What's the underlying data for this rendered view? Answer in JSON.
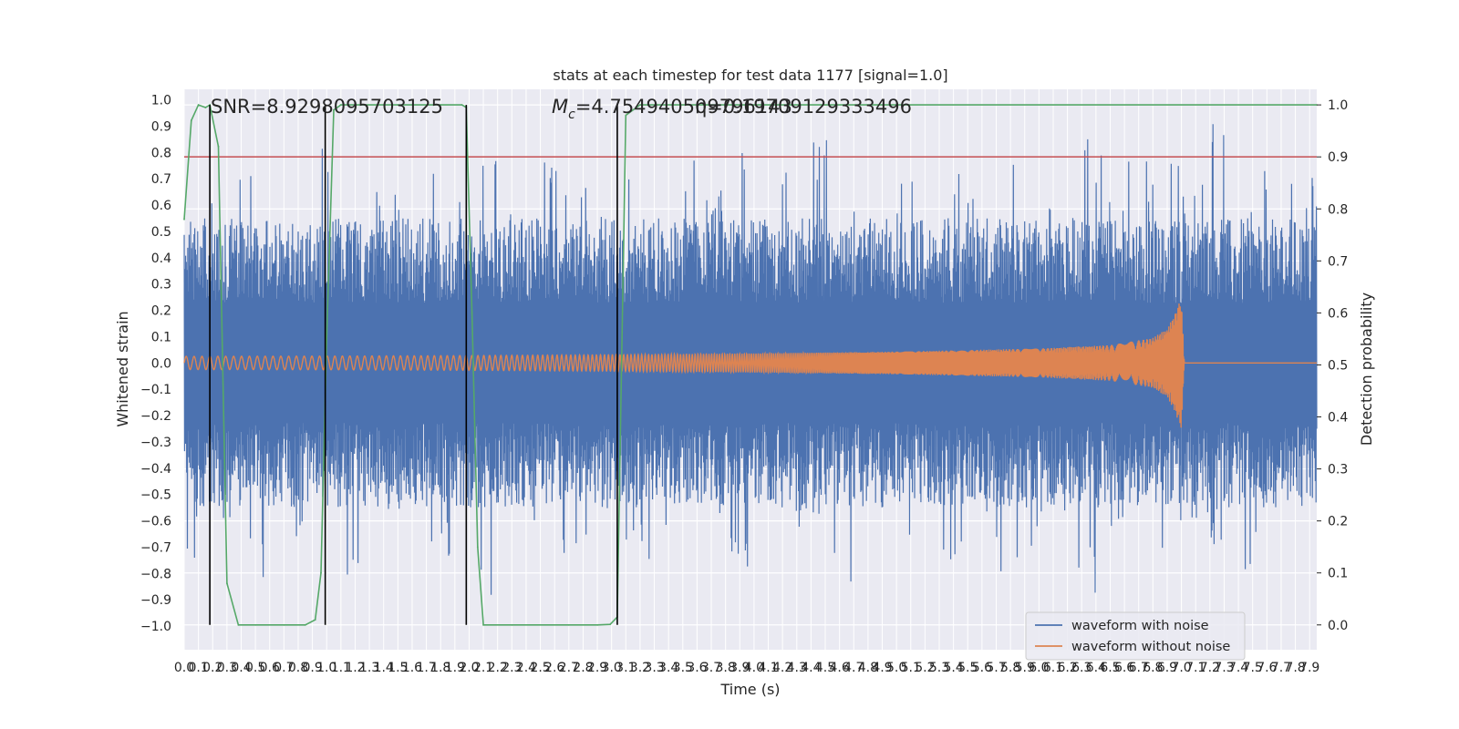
{
  "chart_data": {
    "type": "line",
    "title": "stats at each timestep for test data 1177 [signal=1.0]",
    "xlabel": "Time (s)",
    "ylabel": "Whitened strain",
    "y2label": "Detection probability",
    "xlim": [
      0.0,
      7.95
    ],
    "ylim": [
      -1.09,
      1.04
    ],
    "y2lim": [
      -0.0477,
      1.03
    ],
    "x_tick_step": 0.1,
    "x_tick_max": 7.9,
    "y_ticks": [
      1.0,
      0.9,
      0.8,
      0.7,
      0.6,
      0.5,
      0.4,
      0.3,
      0.2,
      0.1,
      0.0,
      -0.1,
      -0.2,
      -0.3,
      -0.4,
      -0.5,
      -0.6,
      -0.7,
      -0.8,
      -0.9,
      -1.0
    ],
    "y_tick_labels": [
      "1.0",
      "0.9",
      "0.8",
      "0.7",
      "0.6",
      "0.5",
      "0.4",
      "0.3",
      "0.2",
      "0.1",
      "0.0",
      "−0.1",
      "−0.2",
      "−0.3",
      "−0.4",
      "−0.5",
      "−0.6",
      "−0.7",
      "−0.8",
      "−0.9",
      "−1.0"
    ],
    "y2_ticks": [
      1.0,
      0.9,
      0.8,
      0.7,
      0.6,
      0.5,
      0.4,
      0.3,
      0.2,
      0.1,
      0.0
    ],
    "y2_tick_labels": [
      "1.0",
      "0.9",
      "0.8",
      "0.7",
      "0.6",
      "0.5",
      "0.4",
      "0.3",
      "0.2",
      "0.1",
      "0.0"
    ],
    "grid": true,
    "legend_position": "lower-right",
    "annotations": {
      "snr": "SNR=8.9298095703125",
      "mc_prefix": "M",
      "mc_subscript": "c",
      "mc_value": "=4.754940509796143",
      "overlap_text": "η=0.19709129333496"
    },
    "threshold": {
      "value": 0.9,
      "color": "#c44e52"
    },
    "vlines": [
      0.18,
      0.99,
      1.98,
      3.04
    ],
    "series": [
      {
        "name": "waveform with noise",
        "color": "#4c72b0",
        "envelope_upper_sample": [
          0.38,
          0.62,
          0.92,
          0.55,
          0.68,
          0.88,
          0.6,
          0.72,
          0.5,
          0.84,
          0.65,
          0.78,
          0.58,
          0.9,
          0.7,
          0.62,
          0.8,
          0.55,
          0.86,
          0.66,
          0.92,
          0.6,
          0.75,
          0.85,
          0.62,
          0.88,
          0.7,
          0.58,
          0.8,
          0.66,
          0.92,
          0.72,
          0.6,
          0.9,
          0.65,
          0.78,
          0.85,
          0.7,
          0.92,
          0.62,
          0.8,
          0.75
        ],
        "envelope_lower_sample": [
          -0.76,
          -0.6,
          -0.85,
          -0.52,
          -0.7,
          -0.45,
          -0.82,
          -0.6,
          -0.48,
          -0.78,
          -0.55,
          -0.93,
          -0.62,
          -0.5,
          -0.8,
          -0.58,
          -0.7,
          -0.82,
          -0.55,
          -0.66,
          -0.8,
          -0.5,
          -0.72,
          -0.6,
          -0.85,
          -0.55,
          -0.68,
          -0.62,
          -0.75,
          -0.58,
          -0.8,
          -0.7,
          -0.6,
          -0.9,
          -0.65,
          -0.55,
          -0.78,
          -0.6,
          -0.7,
          -0.82,
          -0.58,
          -0.52
        ]
      },
      {
        "name": "waveform without noise",
        "color": "#dd8452",
        "amplitude_at": [
          [
            0.0,
            0.025
          ],
          [
            1.0,
            0.026
          ],
          [
            2.0,
            0.028
          ],
          [
            3.0,
            0.031
          ],
          [
            4.0,
            0.036
          ],
          [
            5.0,
            0.043
          ],
          [
            6.0,
            0.055
          ],
          [
            6.5,
            0.068
          ],
          [
            6.8,
            0.095
          ],
          [
            6.9,
            0.13
          ],
          [
            6.95,
            0.18
          ],
          [
            7.0,
            0.25
          ],
          [
            7.02,
            0.0
          ]
        ],
        "merger_time": 7.02
      },
      {
        "name": "detection probability",
        "color": "#55a868",
        "axis": "y2",
        "x": [
          0.0,
          0.05,
          0.1,
          0.15,
          0.18,
          0.24,
          0.3,
          0.38,
          0.5,
          0.7,
          0.85,
          0.92,
          0.96,
          1.0,
          1.05,
          1.1,
          1.2,
          1.5,
          1.8,
          1.95,
          1.98,
          2.02,
          2.06,
          2.1,
          2.3,
          2.7,
          2.9,
          2.99,
          3.04,
          3.1,
          3.2,
          7.95
        ],
        "y": [
          0.78,
          0.97,
          1.0,
          0.995,
          1.0,
          0.92,
          0.08,
          0.0,
          0.0,
          0.0,
          0.0,
          0.01,
          0.1,
          0.55,
          0.99,
          1.0,
          1.0,
          1.0,
          1.0,
          1.0,
          0.995,
          0.6,
          0.15,
          0.0,
          0.0,
          0.0,
          0.0,
          0.001,
          0.015,
          0.98,
          1.0,
          1.0
        ]
      }
    ]
  }
}
